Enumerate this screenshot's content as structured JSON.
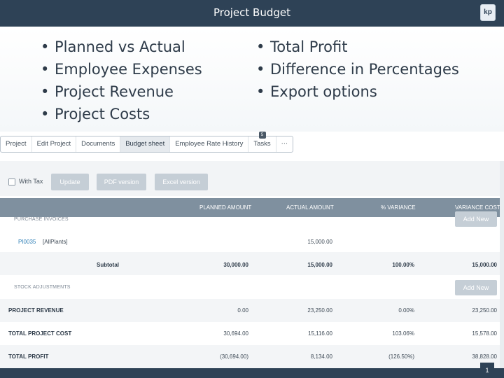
{
  "title": "Project Budget",
  "logo_text": "kp",
  "bullets_left": [
    "Planned vs Actual",
    "Employee Expenses",
    "Project Revenue",
    "Project Costs"
  ],
  "bullets_right": [
    "Total Profit",
    "Difference in Percentages",
    "Export options"
  ],
  "tabs": [
    {
      "label": "Project"
    },
    {
      "label": "Edit Project"
    },
    {
      "label": "Documents"
    },
    {
      "label": "Budget sheet",
      "active": true
    },
    {
      "label": "Employee Rate History"
    },
    {
      "label": "Tasks",
      "badge": "5"
    },
    {
      "label": "⋯"
    }
  ],
  "controls": {
    "with_tax": "With Tax",
    "update": "Update",
    "pdf": "PDF version",
    "excel": "Excel version"
  },
  "headers": {
    "planned": "PLANNED AMOUNT",
    "actual": "ACTUAL AMOUNT",
    "variance_pct": "% VARIANCE",
    "variance_cost": "VARIANCE COST"
  },
  "purchase_invoices": {
    "label": "PURCHASE INVOICES",
    "add_new": "Add New",
    "item": {
      "code": "PI0035",
      "name": "[AllPlants]",
      "actual": "15,000.00"
    },
    "subtotal": {
      "label": "Subtotal",
      "planned": "30,000.00",
      "actual": "15,000.00",
      "variance_pct": "100.00%",
      "variance_cost": "15,000.00"
    }
  },
  "stock_adjustments": {
    "label": "STOCK ADJUSTMENTS",
    "add_new": "Add New"
  },
  "project_revenue": {
    "label": "PROJECT REVENUE",
    "planned": "0.00",
    "actual": "23,250.00",
    "variance_pct": "0.00%",
    "variance_cost": "23,250.00"
  },
  "total_project_cost": {
    "label": "TOTAL PROJECT COST",
    "planned": "30,694.00",
    "actual": "15,116.00",
    "variance_pct": "103.06%",
    "variance_cost": "15,578.00"
  },
  "total_profit": {
    "label": "TOTAL PROFIT",
    "planned": "(30,694.00)",
    "actual": "8,134.00",
    "variance_pct": "(126.50%)",
    "variance_cost": "38,828.00"
  },
  "page_number": "1"
}
